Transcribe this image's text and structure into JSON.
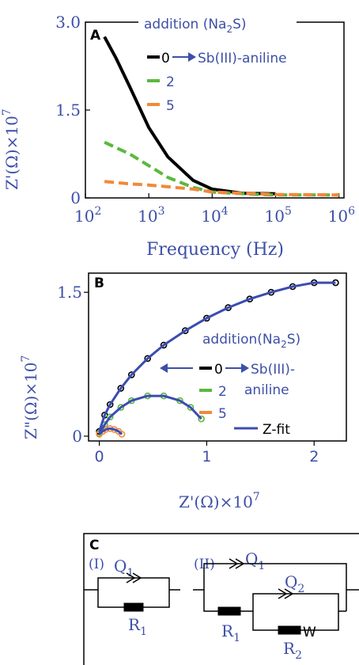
{
  "chart_data": [
    {
      "panel": "A",
      "type": "line",
      "x_scale": "log",
      "xlabel": "Frequency (Hz)",
      "ylabel": "Z'(Ω)×10",
      "ylabel_exp": "7",
      "xlim": [
        100,
        1200000
      ],
      "ylim": [
        0,
        3.0
      ],
      "x_ticks": [
        {
          "base": "10",
          "exp": "2",
          "v": 100
        },
        {
          "base": "10",
          "exp": "3",
          "v": 1000
        },
        {
          "base": "10",
          "exp": "4",
          "v": 10000
        },
        {
          "base": "10",
          "exp": "5",
          "v": 100000
        },
        {
          "base": "10",
          "exp": "6",
          "v": 1000000
        }
      ],
      "y_ticks": [
        {
          "label": "3.0",
          "v": 3.0
        },
        {
          "label": "1.5",
          "v": 1.5
        },
        {
          "label": "0",
          "v": 0
        }
      ],
      "legend_title": "addition (Na",
      "legend_title_sub": "2",
      "legend_title_tail": "S)",
      "legend_arrow_label": "Sb(III)-aniline",
      "series": [
        {
          "name": "0",
          "color": "#000000",
          "dash": "solid",
          "x": [
            200,
            300,
            500,
            1000,
            2000,
            5000,
            10000,
            30000,
            100000
          ],
          "y": [
            2.75,
            2.4,
            1.9,
            1.2,
            0.7,
            0.3,
            0.15,
            0.08,
            0.07
          ]
        },
        {
          "name": "2",
          "color": "#5bb83e",
          "dash": "dashed",
          "x": [
            200,
            500,
            1000,
            2000,
            5000,
            10000,
            50000,
            100000,
            1000000
          ],
          "y": [
            0.95,
            0.75,
            0.55,
            0.35,
            0.18,
            0.1,
            0.06,
            0.05,
            0.05
          ]
        },
        {
          "name": "5",
          "color": "#f08a3a",
          "dash": "dashed",
          "x": [
            200,
            500,
            1000,
            5000,
            10000,
            100000,
            1000000
          ],
          "y": [
            0.28,
            0.24,
            0.22,
            0.15,
            0.1,
            0.06,
            0.05
          ]
        }
      ]
    },
    {
      "panel": "B",
      "type": "scatter",
      "xlabel": "Z'(Ω)×10",
      "xlabel_exp": "7",
      "ylabel": "Z\"(Ω)×10",
      "ylabel_exp": "7",
      "xlim": [
        -0.1,
        2.3
      ],
      "ylim": [
        -0.05,
        1.7
      ],
      "x_ticks": [
        {
          "label": "0",
          "v": 0
        },
        {
          "label": "1",
          "v": 1
        },
        {
          "label": "2",
          "v": 2
        }
      ],
      "y_ticks": [
        {
          "label": "1.5",
          "v": 1.5
        },
        {
          "label": "0",
          "v": 0
        }
      ],
      "legend_title": "addition(Na",
      "legend_title_sub": "2",
      "legend_title_tail": "S)",
      "legend_arrow_label_1": "Sb(III)-",
      "legend_arrow_label_2": "aniline",
      "fit_label": "Z-fit",
      "series": [
        {
          "name": "0",
          "color": "#000000",
          "x": [
            0.0,
            0.05,
            0.1,
            0.2,
            0.3,
            0.45,
            0.6,
            0.8,
            1.0,
            1.2,
            1.4,
            1.6,
            1.8,
            2.0,
            2.2
          ],
          "y": [
            0.05,
            0.22,
            0.33,
            0.5,
            0.64,
            0.81,
            0.95,
            1.1,
            1.23,
            1.34,
            1.43,
            1.5,
            1.56,
            1.6,
            1.6
          ]
        },
        {
          "name": "2",
          "color": "#5bb83e",
          "x": [
            0.0,
            0.05,
            0.1,
            0.2,
            0.3,
            0.45,
            0.6,
            0.75,
            0.85,
            0.95
          ],
          "y": [
            0.03,
            0.12,
            0.2,
            0.3,
            0.37,
            0.42,
            0.42,
            0.37,
            0.3,
            0.18
          ]
        },
        {
          "name": "5",
          "color": "#f08a3a",
          "x": [
            0.0,
            0.03,
            0.06,
            0.1,
            0.14,
            0.18,
            0.21
          ],
          "y": [
            0.02,
            0.05,
            0.07,
            0.08,
            0.07,
            0.05,
            0.02
          ]
        }
      ],
      "fit_color": "#3b4cb0",
      "fits": [
        {
          "x": [
            0.0,
            0.05,
            0.1,
            0.2,
            0.3,
            0.45,
            0.6,
            0.8,
            1.0,
            1.2,
            1.4,
            1.6,
            1.8,
            2.0,
            2.2
          ],
          "y": [
            0.05,
            0.22,
            0.33,
            0.5,
            0.64,
            0.81,
            0.95,
            1.1,
            1.23,
            1.34,
            1.43,
            1.5,
            1.56,
            1.6,
            1.6
          ]
        },
        {
          "x": [
            0.0,
            0.05,
            0.1,
            0.2,
            0.3,
            0.45,
            0.6,
            0.75,
            0.85,
            0.95
          ],
          "y": [
            0.03,
            0.12,
            0.2,
            0.3,
            0.37,
            0.42,
            0.42,
            0.37,
            0.3,
            0.18
          ]
        },
        {
          "x": [
            0.0,
            0.03,
            0.06,
            0.1,
            0.14,
            0.18,
            0.21
          ],
          "y": [
            0.02,
            0.05,
            0.07,
            0.08,
            0.07,
            0.05,
            0.02
          ]
        }
      ]
    }
  ],
  "panel_c": {
    "label": "C",
    "circuit_1": {
      "label": "(I)",
      "q": "Q",
      "q_sub": "1",
      "r": "R",
      "r_sub": "1"
    },
    "circuit_2": {
      "label": "(II)",
      "q1": "Q",
      "q1_sub": "1",
      "q2": "Q",
      "q2_sub": "2",
      "r1": "R",
      "r1_sub": "1",
      "r2": "R",
      "r2_sub": "2",
      "w": "W"
    }
  },
  "panel_labels": {
    "a": "A",
    "b": "B"
  }
}
